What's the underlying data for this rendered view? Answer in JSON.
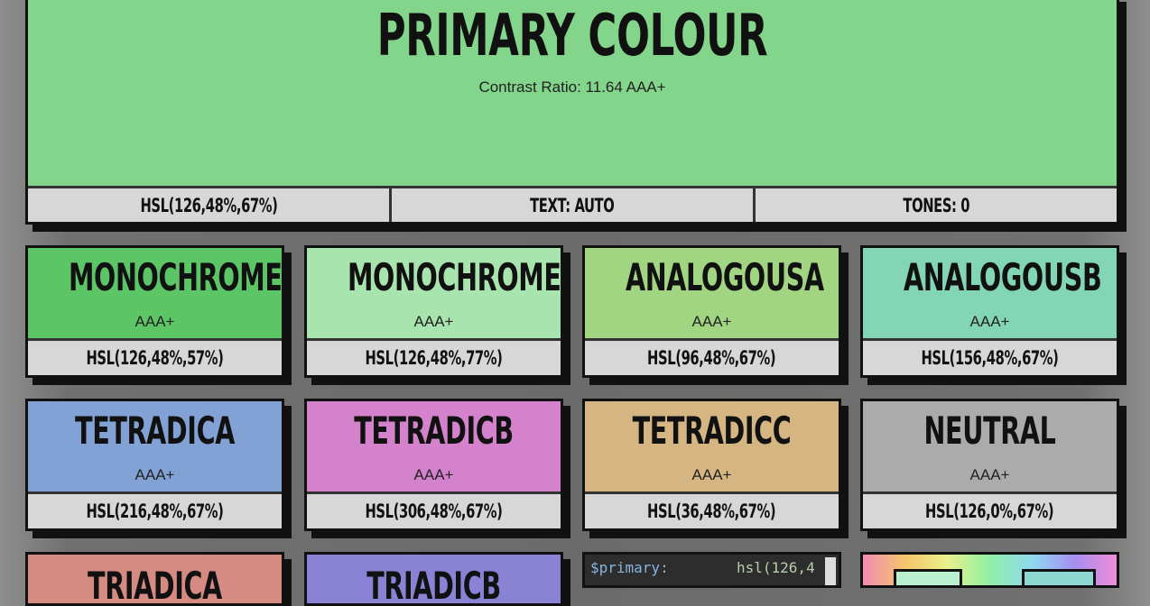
{
  "primary": {
    "title": "PRIMARY COLOUR",
    "contrast": "Contrast Ratio: 11.64 AAA+",
    "color": "#82d58b",
    "hsl": "HSL(126,48%,67%)",
    "text": "TEXT: AUTO",
    "tones": "TONES: 0"
  },
  "swatches": [
    {
      "name": "MONOCHROMEA",
      "rating": "AAA+",
      "hsl": "HSL(126,48%,57%)",
      "color": "#5cc566"
    },
    {
      "name": "MONOCHROMEB",
      "rating": "AAA+",
      "hsl": "HSL(126,48%,77%)",
      "color": "#a8e4ae"
    },
    {
      "name": "ANALOGOUSA",
      "rating": "AAA+",
      "hsl": "HSL(96,48%,67%)",
      "color": "#a2d582"
    },
    {
      "name": "ANALOGOUSB",
      "rating": "AAA+",
      "hsl": "HSL(156,48%,67%)",
      "color": "#82d5b5"
    },
    {
      "name": "TETRADICA",
      "rating": "AAA+",
      "hsl": "HSL(216,48%,67%)",
      "color": "#82a2d5"
    },
    {
      "name": "TETRADICB",
      "rating": "AAA+",
      "hsl": "HSL(306,48%,67%)",
      "color": "#d582cc"
    },
    {
      "name": "TETRADICC",
      "rating": "AAA+",
      "hsl": "HSL(36,48%,67%)",
      "color": "#d5b582"
    },
    {
      "name": "NEUTRAL",
      "rating": "AAA+",
      "hsl": "HSL(126,0%,67%)",
      "color": "#ababab"
    }
  ],
  "partial": [
    {
      "name": "TRIADICA",
      "color": "#d58a82"
    },
    {
      "name": "TRIADICB",
      "color": "#8a82d5"
    }
  ],
  "code": {
    "var": "$primary:",
    "value": "hsl(126,4"
  }
}
